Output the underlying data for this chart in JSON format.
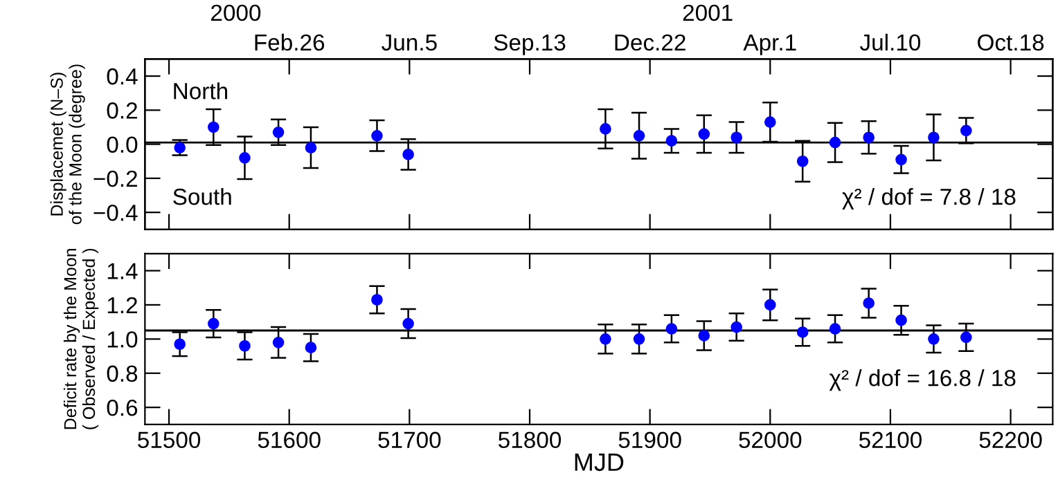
{
  "chart_data": [
    {
      "type": "scatter",
      "ylabel": "Displacemet (N–S)\nof the Moon (degree)",
      "marker": "circle",
      "color": "#0000ff",
      "x": [
        51509,
        51537,
        51563,
        51591,
        51618,
        51673,
        51699,
        51863,
        51891,
        51918,
        51945,
        51972,
        52000,
        52027,
        52054,
        52082,
        52109,
        52136,
        52163
      ],
      "values": [
        -0.02,
        0.1,
        -0.08,
        0.07,
        -0.02,
        0.05,
        -0.06,
        0.09,
        0.05,
        0.02,
        0.06,
        0.04,
        0.13,
        -0.1,
        0.01,
        0.04,
        -0.09,
        0.04,
        0.08
      ],
      "errors": [
        0.045,
        0.105,
        0.125,
        0.075,
        0.12,
        0.09,
        0.09,
        0.115,
        0.135,
        0.07,
        0.11,
        0.09,
        0.115,
        0.12,
        0.115,
        0.095,
        0.08,
        0.135,
        0.075
      ],
      "xlim": [
        51480,
        52235
      ],
      "ylim": [
        -0.5,
        0.5
      ],
      "yticks": [
        {
          "value": -0.4,
          "label": "−0.4"
        },
        {
          "value": -0.2,
          "label": "−0.2"
        },
        {
          "value": 0,
          "label": "0.0"
        },
        0.2,
        0.4
      ],
      "x2lim": [
        "1999-10-29",
        "2001-11-22"
      ],
      "x2ticks": [
        {
          "value": "1999-11-18",
          "label": null
        },
        {
          "value": "2000-02-26",
          "label": "Feb.26"
        },
        {
          "value": "2000-06-05",
          "label": "Jun.5"
        },
        {
          "value": "2000-09-13",
          "label": "Sep.13"
        },
        {
          "value": "2000-12-22",
          "label": "Dec.22"
        },
        {
          "value": "2001-04-01",
          "label": "Apr.1"
        },
        {
          "value": "2001-07-10",
          "label": "Jul.10"
        },
        {
          "value": "2001-10-18",
          "label": "Oct.18"
        }
      ],
      "tick_labels": "y",
      "ref_lines": [
        {
          "axis": "y",
          "value": 0.01,
          "color": "#000000"
        }
      ],
      "annotations": [
        "2000",
        "2001",
        "North",
        "South",
        "χ² / dof = 7.8 / 18"
      ],
      "grid": false,
      "legend": false
    },
    {
      "type": "scatter",
      "ylabel": "Deficit rate by the Moon\n( Observed / Expected )",
      "xlabel": "MJD",
      "marker": "circle",
      "color": "#0000ff",
      "x": [
        51509,
        51537,
        51563,
        51591,
        51618,
        51673,
        51699,
        51863,
        51891,
        51918,
        51945,
        51972,
        52000,
        52027,
        52054,
        52082,
        52109,
        52136,
        52163
      ],
      "values": [
        0.97,
        1.09,
        0.96,
        0.98,
        0.95,
        1.23,
        1.09,
        1.0,
        1.0,
        1.06,
        1.02,
        1.07,
        1.2,
        1.04,
        1.06,
        1.21,
        1.11,
        1.0,
        1.01
      ],
      "errors": [
        0.07,
        0.08,
        0.08,
        0.09,
        0.08,
        0.08,
        0.085,
        0.085,
        0.085,
        0.08,
        0.085,
        0.08,
        0.09,
        0.08,
        0.08,
        0.085,
        0.085,
        0.08,
        0.08
      ],
      "xlim": [
        51480,
        52235
      ],
      "ylim": [
        0.5,
        1.5
      ],
      "xticks": [
        51500,
        51600,
        51700,
        51800,
        51900,
        52000,
        52100,
        52200
      ],
      "yticks": [
        0.6,
        0.8,
        {
          "value": 1.0,
          "label": "1.0"
        },
        1.2,
        1.4
      ],
      "ref_lines": [
        {
          "axis": "y",
          "value": 1.05,
          "color": "#000000"
        }
      ],
      "annotations": [
        "χ² / dof = 16.8 / 18"
      ],
      "grid": false,
      "legend": false
    }
  ]
}
